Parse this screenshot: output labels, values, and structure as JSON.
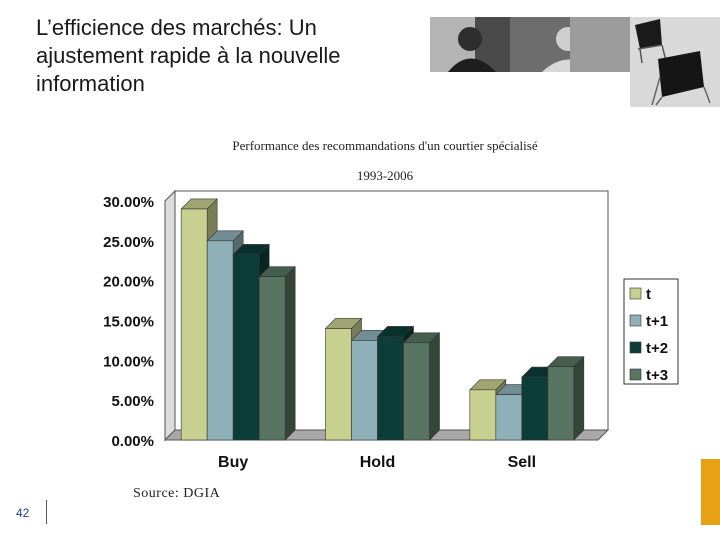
{
  "slide": {
    "title_lines": [
      "L’efficience des marchés: Un",
      "ajustement rapide à la nouvelle",
      "information"
    ],
    "page_number": "42",
    "source": "Source: DGIA",
    "accent_color": "#e8a114"
  },
  "chart_data": {
    "type": "bar",
    "title": "Performance des recommandations d'un courtier spécialisé",
    "subtitle": "1993-2006",
    "categories": [
      "Buy",
      "Hold",
      "Sell"
    ],
    "series": [
      {
        "name": "t",
        "values": [
          29.0,
          14.0,
          6.3
        ],
        "color": "#c8d08f"
      },
      {
        "name": "t+1",
        "values": [
          25.0,
          12.5,
          5.7
        ],
        "color": "#8fb0b8"
      },
      {
        "name": "t+2",
        "values": [
          23.3,
          13.0,
          7.9
        ],
        "color": "#0d3d38"
      },
      {
        "name": "t+3",
        "values": [
          20.5,
          12.2,
          9.2
        ],
        "color": "#577561"
      }
    ],
    "y_ticks": [
      "0.00%",
      "5.00%",
      "10.00%",
      "15.00%",
      "20.00%",
      "25.00%",
      "30.00%"
    ],
    "ylim": [
      0,
      30
    ],
    "legend_position": "right",
    "style": "3d-bar"
  }
}
